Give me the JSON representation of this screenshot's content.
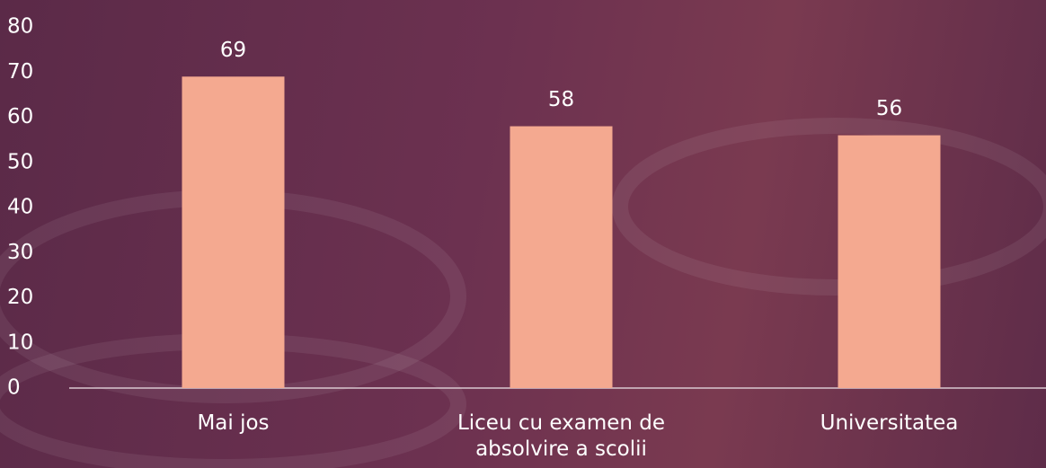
{
  "chart_data": {
    "type": "bar",
    "categories": [
      "Mai jos",
      "Liceu cu examen de absolvire a scolii",
      "Universitatea"
    ],
    "values": [
      69,
      58,
      56
    ],
    "color": "#f4a990",
    "ylim": [
      0,
      80
    ],
    "yticks": [
      0,
      10,
      20,
      30,
      40,
      50,
      60,
      70,
      80
    ]
  }
}
